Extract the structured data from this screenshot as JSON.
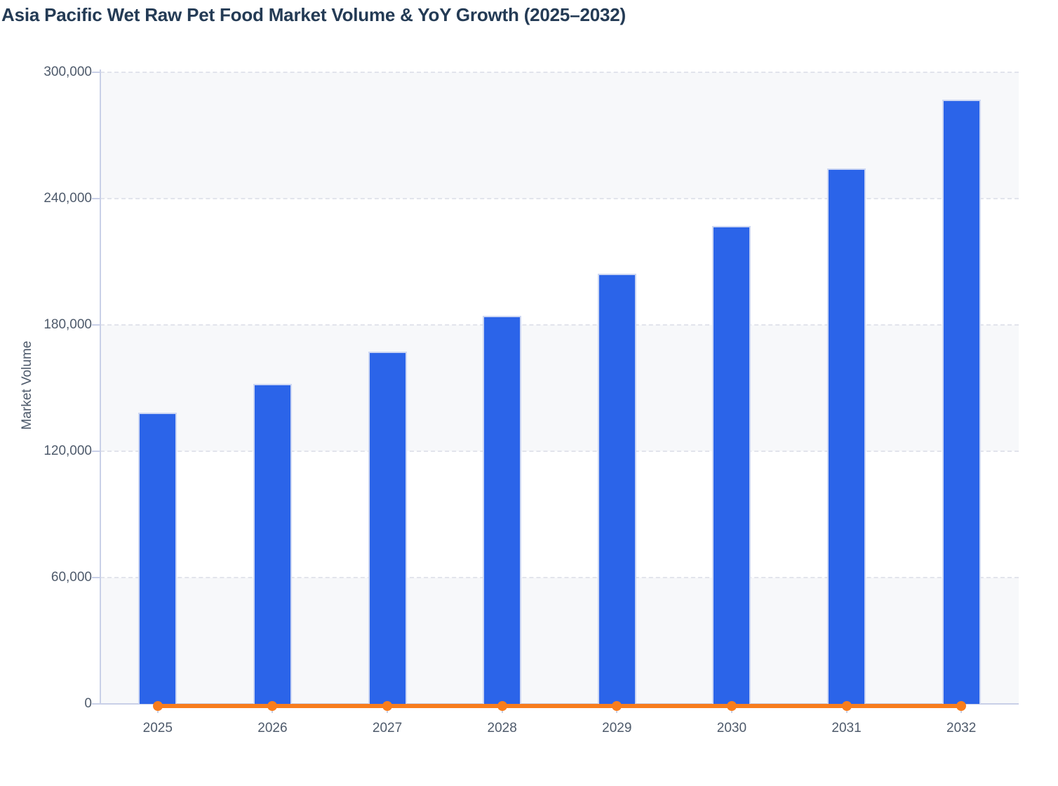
{
  "chart_data": {
    "type": "bar",
    "title": "Asia Pacific Wet Raw Pet Food Market Volume & YoY Growth (2025–2032)",
    "ylabel": "Market Volume",
    "xlabel": "",
    "categories": [
      "2025",
      "2026",
      "2027",
      "2028",
      "2029",
      "2030",
      "2031",
      "2032"
    ],
    "series": [
      {
        "name": "Market Volume",
        "type": "bar",
        "color": "#2b64e9",
        "values": [
          138500,
          152000,
          167500,
          184500,
          204500,
          227000,
          254500,
          287000
        ]
      },
      {
        "name": "YoY Growth",
        "type": "line",
        "color": "#f87d1d",
        "values_as_plotted": [
          0,
          0,
          0,
          0,
          0,
          0,
          0,
          0
        ],
        "note": "YoY growth line renders flat along the zero baseline with a round marker at each year"
      }
    ],
    "ylim": [
      0,
      300000
    ],
    "yticks": [
      0,
      60000,
      120000,
      180000,
      240000,
      300000
    ],
    "ytick_labels": [
      "0",
      "60,000",
      "120,000",
      "180,000",
      "240,000",
      "300,000"
    ],
    "grid": "horizontal dashed gridlines",
    "plot_bands": "alternating horizontal shading between gridlines",
    "legend": "none",
    "colors": {
      "title_text": "#243b55",
      "tick_text": "#4e5a6b",
      "bar_fill": "#2b64e9",
      "bar_stroke": "#cdd7f3",
      "line": "#f87d1d",
      "axis_line": "#c9d0e8",
      "gridline": "#e2e4ec",
      "band_shade": "#f7f8fa",
      "band_light": "#ffffff",
      "background": "#ffffff"
    }
  }
}
